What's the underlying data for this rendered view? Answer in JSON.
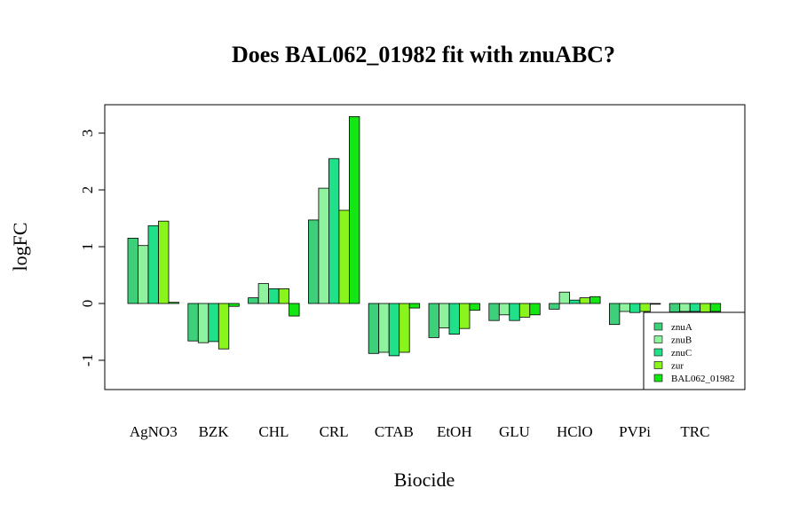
{
  "chart_data": {
    "type": "bar",
    "title": "Does BAL062_01982 fit with znuABC?",
    "xlabel": "Biocide",
    "ylabel": "logFC",
    "categories": [
      "AgNO3",
      "BZK",
      "CHL",
      "CRL",
      "CTAB",
      "EtOH",
      "GLU",
      "HClO",
      "PVPi",
      "TRC"
    ],
    "ylim": [
      -1.5,
      3.5
    ],
    "yticks": [
      -1,
      0,
      1,
      2,
      3
    ],
    "legend_position": "bottom-right",
    "series": [
      {
        "name": "znuA",
        "color": "#3ecf7a",
        "values": [
          1.15,
          -0.66,
          0.1,
          1.47,
          -0.88,
          -0.6,
          -0.3,
          -0.1,
          -0.37,
          -0.15
        ]
      },
      {
        "name": "znuB",
        "color": "#8ef29e",
        "values": [
          1.02,
          -0.69,
          0.35,
          2.03,
          -0.86,
          -0.43,
          -0.2,
          0.2,
          -0.14,
          -0.14
        ]
      },
      {
        "name": "znuC",
        "color": "#21e08a",
        "values": [
          1.37,
          -0.67,
          0.26,
          2.55,
          -0.92,
          -0.54,
          -0.3,
          0.06,
          -0.16,
          -0.14
        ]
      },
      {
        "name": "zur",
        "color": "#8af51c",
        "values": [
          1.45,
          -0.8,
          0.26,
          1.64,
          -0.86,
          -0.44,
          -0.24,
          0.1,
          -0.14,
          -0.15
        ]
      },
      {
        "name": "BAL062_01982",
        "color": "#14e614",
        "values": [
          0.02,
          -0.05,
          -0.22,
          3.29,
          -0.08,
          -0.12,
          -0.2,
          0.12,
          0.0,
          -0.14
        ]
      }
    ]
  }
}
